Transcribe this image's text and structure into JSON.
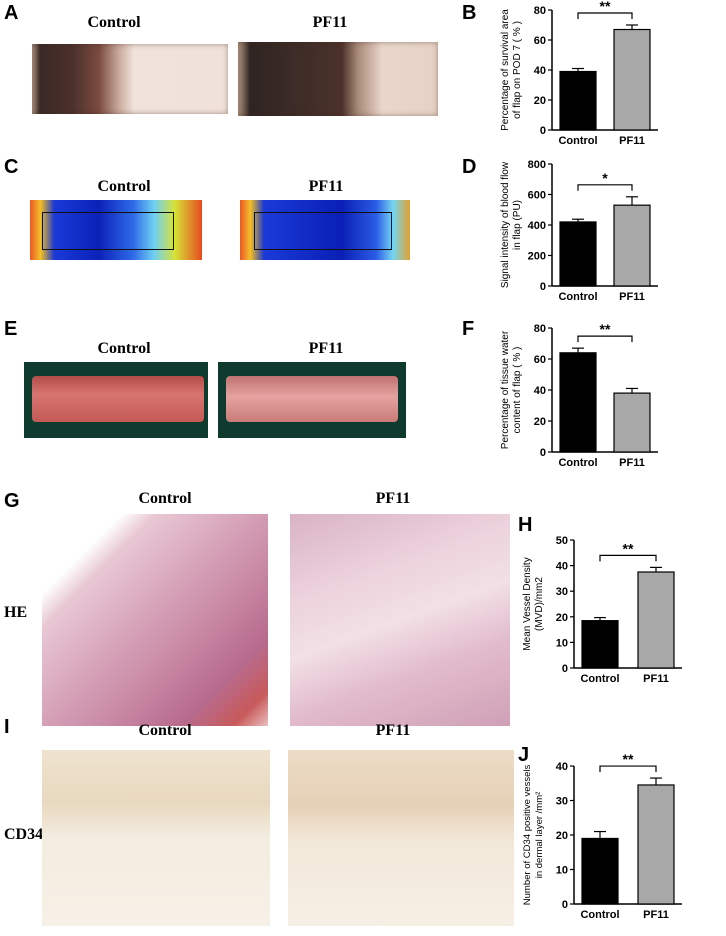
{
  "panels": {
    "A": {
      "letter": "A",
      "left_label": "Control",
      "right_label": "PF11"
    },
    "B": {
      "letter": "B"
    },
    "C": {
      "letter": "C",
      "left_label": "Control",
      "right_label": "PF11"
    },
    "D": {
      "letter": "D"
    },
    "E": {
      "letter": "E",
      "left_label": "Control",
      "right_label": "PF11"
    },
    "F": {
      "letter": "F"
    },
    "G": {
      "letter": "G",
      "left_label": "Control",
      "right_label": "PF11",
      "row_label": "HE"
    },
    "H": {
      "letter": "H"
    },
    "I": {
      "letter": "I",
      "left_label": "Control",
      "right_label": "PF11",
      "row_label": "CD34"
    },
    "J": {
      "letter": "J"
    }
  },
  "chart_data": [
    {
      "id": "B",
      "type": "bar",
      "categories": [
        "Control",
        "PF11"
      ],
      "values": [
        39,
        67
      ],
      "errors": [
        2,
        3
      ],
      "ylim": [
        0,
        80
      ],
      "yticks": [
        0,
        20,
        40,
        60,
        80
      ],
      "ylabel": "Percentage of survival area\nof flap on POD 7 ( % )",
      "significance": "**",
      "bar_colors": [
        "#000000",
        "#a8a8a8"
      ]
    },
    {
      "id": "D",
      "type": "bar",
      "categories": [
        "Control",
        "PF11"
      ],
      "values": [
        420,
        530
      ],
      "errors": [
        18,
        55
      ],
      "ylim": [
        0,
        800
      ],
      "yticks": [
        0,
        200,
        400,
        600,
        800
      ],
      "ylabel": "Signal intensity of blood flow\nin flap  (PU)",
      "significance": "*",
      "bar_colors": [
        "#000000",
        "#a8a8a8"
      ]
    },
    {
      "id": "F",
      "type": "bar",
      "categories": [
        "Control",
        "PF11"
      ],
      "values": [
        64,
        38
      ],
      "errors": [
        3,
        3
      ],
      "ylim": [
        0,
        80
      ],
      "yticks": [
        0,
        20,
        40,
        60,
        80
      ],
      "ylabel": "Percentage of tissue water\ncontent of flap ( % )",
      "significance": "**",
      "bar_colors": [
        "#000000",
        "#a8a8a8"
      ]
    },
    {
      "id": "H",
      "type": "bar",
      "categories": [
        "Control",
        "PF11"
      ],
      "values": [
        18.5,
        37.5
      ],
      "errors": [
        1.2,
        1.8
      ],
      "ylim": [
        0,
        50
      ],
      "yticks": [
        0,
        10,
        20,
        30,
        40,
        50
      ],
      "ylabel": "Mean Vessel Density\n(MVD)/mm2",
      "significance": "**",
      "bar_colors": [
        "#000000",
        "#a8a8a8"
      ]
    },
    {
      "id": "J",
      "type": "bar",
      "categories": [
        "Control",
        "PF11"
      ],
      "values": [
        19,
        34.5
      ],
      "errors": [
        2,
        2
      ],
      "ylim": [
        0,
        40
      ],
      "yticks": [
        0,
        10,
        20,
        30,
        40
      ],
      "ylabel": "Number of CD34 positive vessels\nin dermal layer /mm²",
      "significance": "**",
      "bar_colors": [
        "#000000",
        "#a8a8a8"
      ]
    }
  ]
}
